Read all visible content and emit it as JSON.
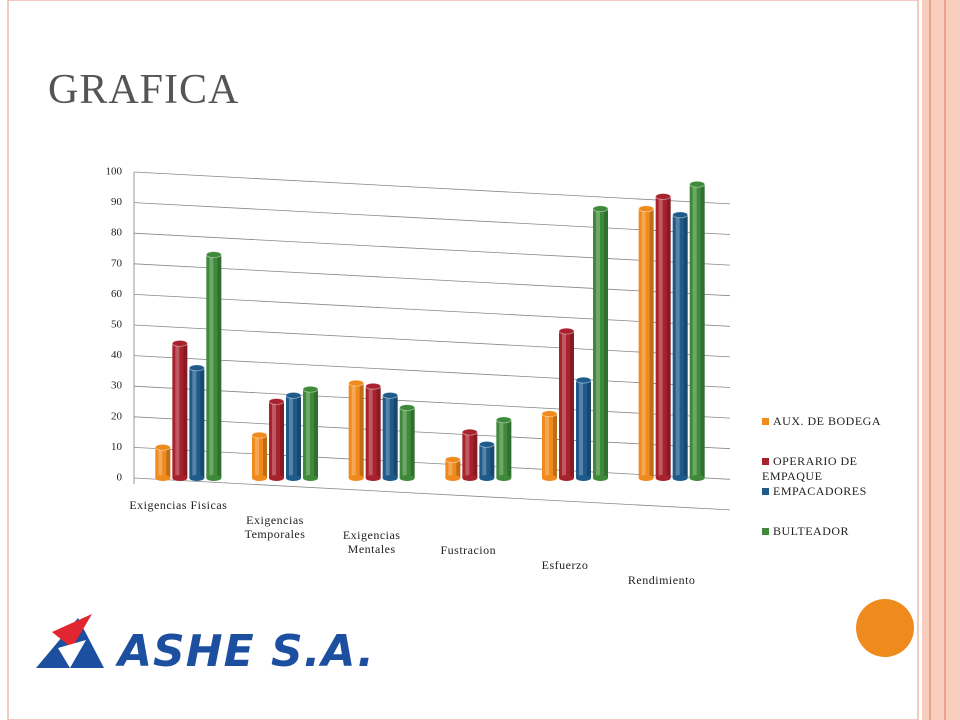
{
  "title": "GRAFICA",
  "logo": "ASHE S.A.",
  "chart_data": {
    "type": "bar",
    "categories": [
      "Exigencias Fisicas",
      "Exigencias Temporales",
      "Exigencias Mentales",
      "Fustracion",
      "Esfuerzo",
      "Rendimiento"
    ],
    "series": [
      {
        "name": "AUX. DE BODEGA",
        "color": "#f08a1c",
        "values": [
          10,
          14,
          31,
          6,
          21,
          88
        ]
      },
      {
        "name": "OPERARIO DE EMPAQUE",
        "color": "#a8222e",
        "values": [
          44,
          25,
          30,
          15,
          48,
          92
        ]
      },
      {
        "name": "EMPACADORES",
        "color": "#1e5a8a",
        "values": [
          36,
          27,
          27,
          11,
          32,
          86
        ]
      },
      {
        "name": "BULTEADOR",
        "color": "#3f8a3a",
        "values": [
          73,
          29,
          23,
          19,
          88,
          96
        ]
      }
    ],
    "ylim": [
      0,
      100
    ],
    "yticks": [
      0,
      10,
      20,
      30,
      40,
      50,
      60,
      70,
      80,
      90,
      100
    ],
    "grid": true
  }
}
